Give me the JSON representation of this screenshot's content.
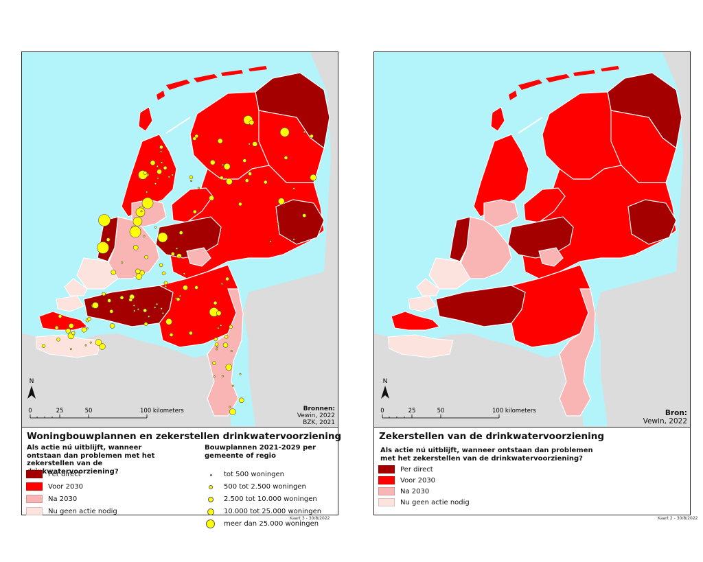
{
  "left_map": {
    "title": "Woningbouwplannen en zekerstellen drinkwatervoorziening",
    "question": "Als actie nú uitblijft, wanneer ontstaan dan problemen met het zekerstellen van de drinkwatervoorziening?",
    "legend_items": [
      {
        "label": "Per direct",
        "color": "#a50000"
      },
      {
        "label": "Voor 2030",
        "color": "#ff0000"
      },
      {
        "label": "Na 2030",
        "color": "#f9b4b4"
      },
      {
        "label": "Nu geen actie nodig",
        "color": "#fce3dd"
      }
    ],
    "dots_title": "Bouwplannen 2021-2029 per gemeente of regio",
    "dot_items": [
      {
        "label": "tot 500 woningen",
        "size": 1
      },
      {
        "label": "500 tot 2.500 woningen",
        "size": 2
      },
      {
        "label": "2.500 tot 10.000 woningen",
        "size": 3
      },
      {
        "label": "10.000 tot 25.000 woningen",
        "size": 4
      },
      {
        "label": "meer dan 25.000 woningen",
        "size": 5
      }
    ],
    "sources_label": "Bronnen:",
    "sources": [
      "Vewin, 2022",
      "BZK, 2021"
    ],
    "credit": "Kaart 3 - 30/8/2022"
  },
  "right_map": {
    "title": "Zekerstellen van de drinkwatervoorziening",
    "question": "Als actie nú uitblijft, wanneer ontstaan dan problemen met het zekerstellen van de drinkwatervoorziening?",
    "legend_items": [
      {
        "label": "Per direct",
        "color": "#a50000"
      },
      {
        "label": "Voor 2030",
        "color": "#ff0000"
      },
      {
        "label": "Na 2030",
        "color": "#f9b4b4"
      },
      {
        "label": "Nu geen actie nodig",
        "color": "#fce3dd"
      }
    ],
    "sources_label": "Bron:",
    "sources": [
      "Vewin, 2022"
    ],
    "credit": "Kaart 2 - 30/8/2022"
  },
  "scale_bar": {
    "ticks": [
      "0",
      "25",
      "50",
      "100 kilometers"
    ]
  },
  "north_label": "N",
  "colors": {
    "sea": "#b3f3fa",
    "land_outside": "#dcdcdc",
    "per_direct": "#a50000",
    "voor_2030": "#ff0000",
    "na_2030": "#f9b4b4",
    "geen_actie": "#fce3dd",
    "dot_fill": "#ffff00"
  }
}
